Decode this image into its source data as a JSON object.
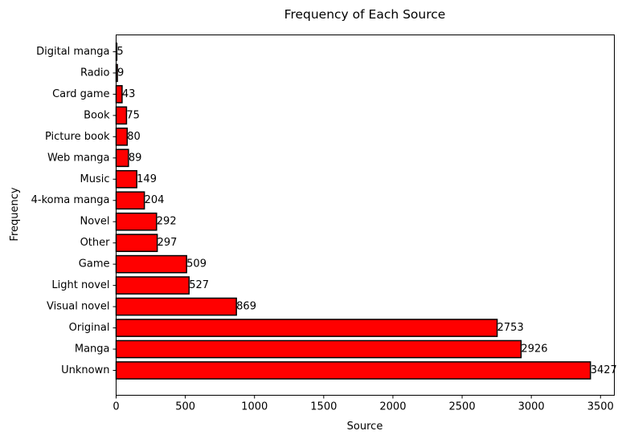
{
  "chart_data": {
    "type": "bar",
    "orientation": "horizontal",
    "title": "Frequency of Each Source",
    "xlabel": "Source",
    "ylabel": "Frequency",
    "categories": [
      "Unknown",
      "Manga",
      "Original",
      "Visual novel",
      "Light novel",
      "Game",
      "Other",
      "Novel",
      "4-koma manga",
      "Music",
      "Web manga",
      "Picture book",
      "Book",
      "Card game",
      "Radio",
      "Digital manga"
    ],
    "values": [
      3427,
      2926,
      2753,
      869,
      527,
      509,
      297,
      292,
      204,
      149,
      89,
      80,
      75,
      43,
      9,
      5
    ],
    "xlim": [
      0,
      3600
    ],
    "xticks": [
      0,
      500,
      1000,
      1500,
      2000,
      2500,
      3000,
      3500
    ],
    "grid": false,
    "legend": "none",
    "bar_color": "#ff0000",
    "edge_color": "#000000"
  }
}
